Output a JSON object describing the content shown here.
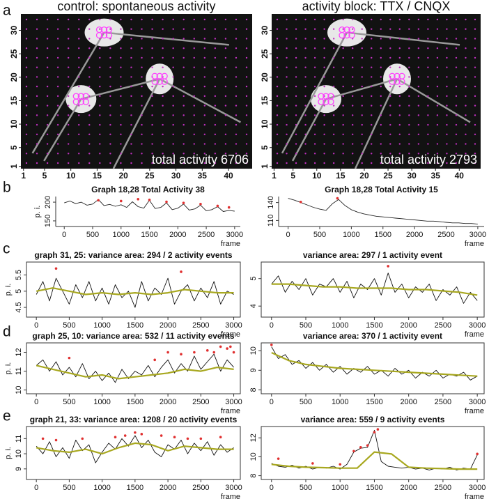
{
  "panel_labels": [
    "a",
    "b",
    "c",
    "d",
    "e"
  ],
  "chart_data": [
    {
      "type": "image",
      "title": "control: spontaneous activity",
      "annotation": "total activity 6706",
      "xlim": [
        0.5,
        44.5
      ],
      "xticks": [
        1,
        5,
        10,
        15,
        20,
        25,
        30,
        35,
        40
      ],
      "ylim": [
        0.5,
        33.5
      ],
      "yticks": [
        1,
        5,
        10,
        15,
        20,
        25,
        30
      ]
    },
    {
      "type": "image",
      "title": "activity block: TTX / CNQX",
      "annotation": "total activity 2793",
      "xlim": [
        0.5,
        44.5
      ],
      "xticks": [
        1,
        5,
        10,
        15,
        20,
        25,
        30,
        35,
        40
      ],
      "ylim": [
        0.5,
        33.5
      ],
      "yticks": [
        1,
        5,
        10,
        15,
        20,
        25,
        30
      ]
    },
    {
      "type": "line",
      "title": "Graph 18,28   Total Activity 38",
      "ylabel": "p. i.",
      "xlabel": "frame",
      "box": false,
      "xlim": [
        -150,
        3100
      ],
      "xticks": [
        0,
        500,
        1000,
        1500,
        2000,
        2500,
        3000
      ],
      "ylim": [
        135,
        215
      ],
      "yticks": [
        150,
        200
      ],
      "x": [
        0,
        100,
        200,
        300,
        400,
        500,
        600,
        700,
        800,
        900,
        1000,
        1100,
        1200,
        1300,
        1400,
        1500,
        1600,
        1700,
        1800,
        1900,
        2000,
        2100,
        2200,
        2300,
        2400,
        2500,
        2600,
        2700,
        2800,
        2900,
        3000
      ],
      "series": [
        {
          "color": "#222222",
          "values": [
            198,
            203,
            196,
            200,
            192,
            195,
            207,
            191,
            194,
            189,
            193,
            186,
            201,
            188,
            184,
            205,
            183,
            186,
            198,
            180,
            184,
            195,
            179,
            182,
            192,
            177,
            180,
            188,
            175,
            178,
            176
          ]
        },
        {
          "color": "#e03030",
          "kind": "points",
          "x": [
            600,
            1000,
            1300,
            1500,
            1800,
            2100,
            2400,
            2700,
            2900
          ],
          "values": [
            205,
            203,
            208,
            206,
            201,
            198,
            195,
            190,
            186
          ]
        }
      ]
    },
    {
      "type": "line",
      "title": "Graph 18,28   Total Activity 15",
      "xlabel": "frame",
      "box": false,
      "xlim": [
        -150,
        3100
      ],
      "xticks": [
        0,
        500,
        1000,
        1500,
        2000,
        2500,
        3000
      ],
      "ylim": [
        100,
        150
      ],
      "yticks": [
        110,
        140
      ],
      "x": [
        0,
        100,
        200,
        300,
        400,
        500,
        600,
        700,
        800,
        900,
        1000,
        1100,
        1200,
        1300,
        1400,
        1500,
        1600,
        1700,
        1800,
        1900,
        2000,
        2100,
        2200,
        2300,
        2400,
        2500,
        2600,
        2700,
        2800,
        2900,
        3000
      ],
      "series": [
        {
          "color": "#222222",
          "values": [
            147,
            144,
            140,
            136,
            132,
            129,
            127,
            138,
            145,
            135,
            128,
            124,
            121,
            119,
            117,
            116,
            115,
            114,
            113,
            112,
            111,
            110,
            109,
            109,
            108,
            107,
            106,
            106,
            105,
            105,
            104
          ]
        },
        {
          "color": "#e03030",
          "kind": "points",
          "x": [
            200,
            780
          ],
          "values": [
            141,
            147
          ]
        }
      ]
    },
    {
      "type": "line",
      "title": "graph 31, 25: variance area: 294 / 2 activity events",
      "ylabel": "p. i.",
      "xlabel": "frame",
      "box": true,
      "xlim": [
        -150,
        3100
      ],
      "xticks": [
        0,
        500,
        1000,
        1500,
        2000,
        2500,
        3000
      ],
      "ylim": [
        4.2,
        5.9
      ],
      "yticks": [
        4.5,
        5,
        5.5
      ],
      "x": [
        0,
        100,
        200,
        300,
        400,
        500,
        600,
        700,
        800,
        900,
        1000,
        1100,
        1200,
        1300,
        1400,
        1500,
        1600,
        1700,
        1800,
        1900,
        2000,
        2100,
        2200,
        2300,
        2400,
        2500,
        2600,
        2700,
        2800,
        2900,
        3000
      ],
      "series": [
        {
          "color": "#111111",
          "values": [
            4.9,
            5.3,
            4.7,
            5.4,
            5.0,
            4.6,
            5.2,
            4.8,
            5.3,
            4.7,
            5.1,
            4.6,
            5.2,
            4.8,
            5.0,
            4.5,
            5.3,
            4.7,
            5.1,
            4.9,
            5.4,
            4.6,
            5.0,
            5.2,
            4.7,
            5.1,
            4.8,
            5.3,
            4.6,
            5.0,
            4.9
          ]
        },
        {
          "color": "#a8a820",
          "x": [
            0,
            250,
            500,
            750,
            1000,
            1250,
            1500,
            1750,
            2000,
            2250,
            2500,
            2750,
            3000
          ],
          "values": [
            5.0,
            5.1,
            5.0,
            4.9,
            4.95,
            4.9,
            4.95,
            4.9,
            4.95,
            5.05,
            5.0,
            4.95,
            4.95
          ]
        },
        {
          "color": "#e03030",
          "kind": "points",
          "x": [
            300,
            2200
          ],
          "values": [
            5.7,
            5.6
          ]
        }
      ]
    },
    {
      "type": "line",
      "title": "variance area: 297 / 1 activity event",
      "xlabel": "frame",
      "box": true,
      "xlim": [
        -150,
        3100
      ],
      "xticks": [
        0,
        500,
        1000,
        1500,
        2000,
        2500,
        3000
      ],
      "ylim": [
        3.6,
        5.6
      ],
      "yticks": [
        4,
        5
      ],
      "x": [
        0,
        100,
        200,
        300,
        400,
        500,
        600,
        700,
        800,
        900,
        1000,
        1100,
        1200,
        1300,
        1400,
        1500,
        1600,
        1700,
        1800,
        1900,
        2000,
        2100,
        2200,
        2300,
        2400,
        2500,
        2600,
        2700,
        2800,
        2900,
        3000
      ],
      "series": [
        {
          "color": "#111111",
          "values": [
            4.8,
            5.1,
            4.5,
            4.9,
            4.6,
            5.0,
            4.4,
            4.8,
            4.7,
            5.0,
            4.5,
            4.9,
            4.3,
            4.8,
            4.6,
            5.0,
            4.4,
            5.2,
            4.5,
            4.8,
            4.3,
            4.7,
            4.5,
            4.8,
            4.2,
            4.6,
            4.4,
            4.7,
            4.1,
            4.5,
            4.2
          ]
        },
        {
          "color": "#a8a820",
          "x": [
            0,
            250,
            500,
            750,
            1000,
            1250,
            1500,
            1750,
            2000,
            2250,
            2500,
            2750,
            3000
          ],
          "values": [
            4.8,
            4.8,
            4.75,
            4.7,
            4.7,
            4.65,
            4.65,
            4.65,
            4.6,
            4.6,
            4.55,
            4.5,
            4.4
          ]
        },
        {
          "color": "#e03030",
          "kind": "points",
          "x": [
            1700
          ],
          "values": [
            5.45
          ]
        }
      ]
    },
    {
      "type": "line",
      "title": "graph 25, 10: variance area: 532 / 11 activity events",
      "ylabel": "p. i.",
      "xlabel": "frame",
      "box": true,
      "xlim": [
        -150,
        3100
      ],
      "xticks": [
        0,
        500,
        1000,
        1500,
        2000,
        2500,
        3000
      ],
      "ylim": [
        9.8,
        12.5
      ],
      "yticks": [
        10,
        11,
        12
      ],
      "x": [
        0,
        100,
        200,
        300,
        400,
        500,
        600,
        700,
        800,
        900,
        1000,
        1100,
        1200,
        1300,
        1400,
        1500,
        1600,
        1700,
        1800,
        1900,
        2000,
        2100,
        2200,
        2300,
        2400,
        2500,
        2600,
        2700,
        2800,
        2900,
        3000
      ],
      "series": [
        {
          "color": "#111111",
          "values": [
            11.3,
            11.6,
            11.0,
            11.5,
            10.8,
            11.2,
            10.7,
            11.4,
            10.6,
            11.0,
            10.5,
            10.9,
            10.4,
            11.1,
            10.6,
            11.0,
            10.8,
            11.3,
            10.7,
            11.2,
            11.6,
            10.9,
            11.4,
            11.0,
            11.8,
            11.1,
            11.5,
            11.9,
            11.0,
            11.6,
            11.2
          ]
        },
        {
          "color": "#a8a820",
          "x": [
            0,
            250,
            500,
            750,
            1000,
            1250,
            1500,
            1750,
            2000,
            2250,
            2500,
            2750,
            3000
          ],
          "values": [
            11.3,
            11.1,
            10.9,
            10.7,
            10.8,
            10.6,
            10.7,
            10.8,
            10.9,
            11.1,
            11.0,
            11.2,
            11.1
          ]
        },
        {
          "color": "#e03030",
          "kind": "points",
          "x": [
            500,
            1800,
            2000,
            2200,
            2400,
            2600,
            2700,
            2800,
            2900,
            2950,
            3000
          ],
          "values": [
            11.7,
            11.6,
            12.0,
            11.9,
            12.0,
            12.1,
            12.0,
            12.3,
            12.2,
            12.3,
            12.0
          ]
        }
      ]
    },
    {
      "type": "line",
      "title": "variance area: 370 / 1 activity event",
      "xlabel": "frame",
      "box": true,
      "xlim": [
        -150,
        3100
      ],
      "xticks": [
        0,
        500,
        1000,
        1500,
        2000,
        2500,
        3000
      ],
      "ylim": [
        7.8,
        10.4
      ],
      "yticks": [
        8,
        9,
        10
      ],
      "x": [
        0,
        100,
        200,
        300,
        400,
        500,
        600,
        700,
        800,
        900,
        1000,
        1100,
        1200,
        1300,
        1400,
        1500,
        1600,
        1700,
        1800,
        1900,
        2000,
        2100,
        2200,
        2300,
        2400,
        2500,
        2600,
        2700,
        2800,
        2900,
        3000
      ],
      "series": [
        {
          "color": "#111111",
          "values": [
            10.2,
            9.6,
            9.8,
            9.3,
            9.5,
            9.1,
            9.4,
            9.0,
            9.3,
            8.9,
            9.2,
            8.8,
            9.1,
            8.9,
            9.2,
            8.8,
            9.0,
            8.7,
            9.1,
            8.8,
            9.0,
            8.6,
            8.9,
            8.7,
            9.0,
            8.6,
            8.8,
            8.7,
            8.9,
            8.5,
            8.7
          ]
        },
        {
          "color": "#a8a820",
          "x": [
            0,
            250,
            500,
            750,
            1000,
            1250,
            1500,
            1750,
            2000,
            2250,
            2500,
            2750,
            3000
          ],
          "values": [
            9.9,
            9.5,
            9.3,
            9.2,
            9.1,
            9.05,
            9.0,
            8.95,
            8.9,
            8.85,
            8.8,
            8.75,
            8.7
          ]
        },
        {
          "color": "#e03030",
          "kind": "points",
          "x": [
            0
          ],
          "values": [
            10.3
          ]
        }
      ]
    },
    {
      "type": "line",
      "title": "graph 21, 33: variance area: 1208 / 20 activity events",
      "ylabel": "p. i.",
      "xlabel": "frame",
      "box": true,
      "xlim": [
        -150,
        3100
      ],
      "xticks": [
        0,
        500,
        1000,
        1500,
        2000,
        2500,
        3000
      ],
      "ylim": [
        8.3,
        11.8
      ],
      "yticks": [
        9,
        10,
        11
      ],
      "x": [
        0,
        100,
        200,
        300,
        400,
        500,
        600,
        700,
        800,
        900,
        1000,
        1100,
        1200,
        1300,
        1400,
        1500,
        1600,
        1700,
        1800,
        1900,
        2000,
        2100,
        2200,
        2300,
        2400,
        2500,
        2600,
        2700,
        2800,
        2900,
        3000
      ],
      "series": [
        {
          "color": "#111111",
          "values": [
            10.5,
            10.0,
            10.8,
            9.8,
            10.4,
            9.7,
            10.9,
            10.2,
            10.6,
            9.4,
            10.1,
            10.7,
            10.3,
            11.0,
            10.5,
            11.2,
            10.4,
            10.9,
            10.1,
            9.8,
            10.6,
            10.3,
            10.9,
            10.0,
            10.7,
            10.2,
            10.8,
            9.9,
            10.6,
            10.1,
            10.4
          ]
        },
        {
          "color": "#a8a820",
          "x": [
            0,
            250,
            500,
            750,
            1000,
            1250,
            1500,
            1750,
            2000,
            2250,
            2500,
            2750,
            3000
          ],
          "values": [
            10.4,
            10.2,
            10.1,
            10.3,
            10.0,
            10.4,
            10.7,
            10.6,
            10.2,
            10.5,
            10.4,
            10.3,
            10.3
          ]
        },
        {
          "color": "#e03030",
          "kind": "points",
          "x": [
            100,
            300,
            700,
            1200,
            1350,
            1500,
            1600,
            1900,
            2100,
            2300,
            2500,
            2800
          ],
          "values": [
            11.0,
            10.9,
            11.0,
            11.1,
            11.2,
            11.4,
            11.3,
            11.2,
            11.1,
            11.0,
            11.0,
            11.1
          ]
        }
      ]
    },
    {
      "type": "line",
      "title": "variance area: 559 / 9 activity events",
      "xlabel": "frame",
      "box": true,
      "xlim": [
        -150,
        3100
      ],
      "xticks": [
        0,
        500,
        1000,
        1500,
        2000,
        2500,
        3000
      ],
      "ylim": [
        7.6,
        13.2
      ],
      "yticks": [
        8,
        10,
        12
      ],
      "x": [
        0,
        100,
        200,
        300,
        400,
        500,
        600,
        700,
        800,
        900,
        1000,
        1100,
        1200,
        1300,
        1400,
        1500,
        1600,
        1700,
        1800,
        1900,
        2000,
        2100,
        2200,
        2300,
        2400,
        2500,
        2600,
        2700,
        2800,
        2900,
        3000
      ],
      "series": [
        {
          "color": "#111111",
          "values": [
            9.3,
            9.0,
            8.9,
            9.1,
            8.8,
            9.0,
            8.7,
            8.9,
            8.8,
            9.0,
            8.7,
            9.2,
            10.5,
            10.9,
            11.0,
            12.8,
            9.5,
            9.0,
            8.9,
            8.8,
            8.9,
            8.7,
            8.8,
            8.6,
            8.8,
            8.7,
            8.9,
            8.6,
            8.8,
            8.7,
            10.2
          ]
        },
        {
          "color": "#a8a820",
          "x": [
            0,
            250,
            500,
            750,
            1000,
            1250,
            1500,
            1750,
            2000,
            2250,
            2500,
            2750,
            3000
          ],
          "values": [
            9.2,
            9.0,
            8.9,
            8.85,
            8.8,
            8.8,
            10.5,
            10.3,
            8.9,
            8.8,
            8.75,
            8.7,
            8.7
          ]
        },
        {
          "color": "#e03030",
          "kind": "points",
          "x": [
            100,
            600,
            1000,
            1200,
            1300,
            1400,
            1500,
            1550,
            3000
          ],
          "values": [
            9.8,
            9.3,
            9.2,
            10.6,
            11.0,
            11.2,
            12.6,
            12.9,
            10.3
          ]
        }
      ]
    }
  ]
}
